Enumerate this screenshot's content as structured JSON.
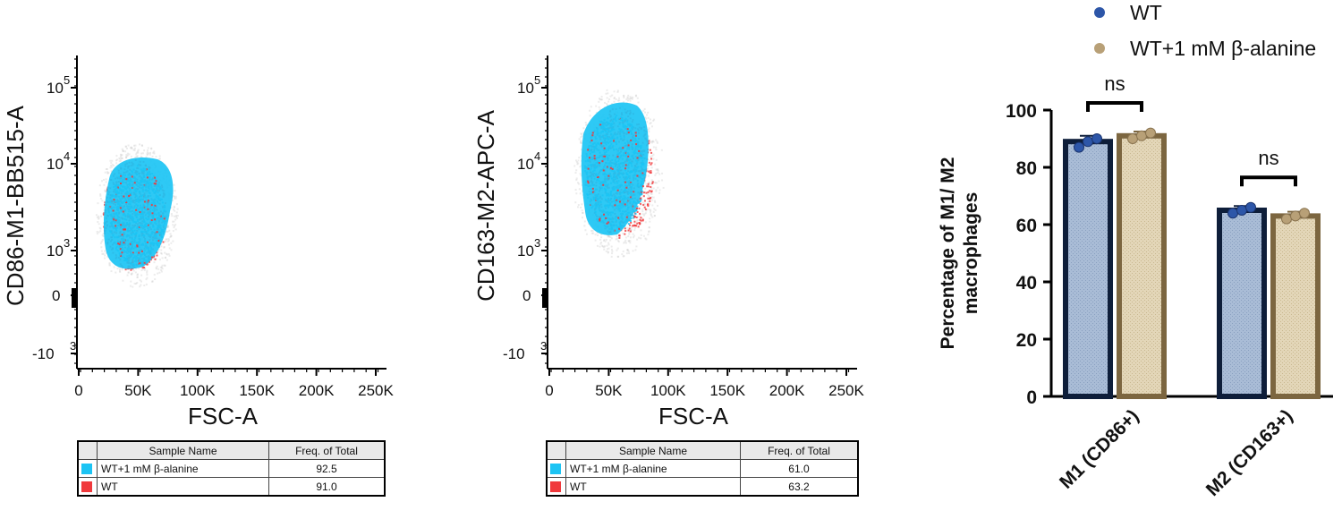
{
  "colors": {
    "cyan": "#1cc4f4",
    "red": "#f0393c",
    "navy": "#0e1e3a",
    "blue_fill": "#a9bcd6",
    "blue_dot": "#2d56a8",
    "tan_fill": "#e3d6b8",
    "tan_edge": "#7c6640",
    "tan_dot": "#b8a077"
  },
  "flow_plots": [
    {
      "ylabel": "CD86-M1-BB515-A",
      "xlabel": "FSC-A",
      "yticks": [
        "10",
        "10",
        "10",
        "0",
        "-10"
      ],
      "ytick_exps": [
        "5",
        "4",
        "3",
        "",
        "3"
      ],
      "xticks": [
        "0",
        "50K",
        "100K",
        "150K",
        "200K",
        "250K"
      ],
      "table": {
        "headers": [
          "Sample Name",
          "Freq. of Total"
        ],
        "rows": [
          {
            "name": "WT+1 mM β-alanine",
            "freq": "92.5",
            "color": "#1cc4f4"
          },
          {
            "name": "WT",
            "freq": "91.0",
            "color": "#f0393c"
          }
        ]
      }
    },
    {
      "ylabel": "CD163-M2-APC-A",
      "xlabel": "FSC-A",
      "yticks": [
        "10",
        "10",
        "10",
        "0",
        "-10"
      ],
      "ytick_exps": [
        "5",
        "4",
        "3",
        "",
        "3"
      ],
      "xticks": [
        "0",
        "50K",
        "100K",
        "150K",
        "200K",
        "250K"
      ],
      "table": {
        "headers": [
          "Sample Name",
          "Freq. of Total"
        ],
        "rows": [
          {
            "name": "WT+1 mM β-alanine",
            "freq": "61.0",
            "color": "#1cc4f4"
          },
          {
            "name": "WT",
            "freq": "63.2",
            "color": "#f0393c"
          }
        ]
      }
    }
  ],
  "chart_data": {
    "type": "bar",
    "ylabel": "Percentage of M1/ M2\nmacrophages",
    "ylim": [
      0,
      100
    ],
    "yticks": [
      0,
      20,
      40,
      60,
      80,
      100
    ],
    "categories": [
      "M1 (CD86+)",
      "M2 (CD163+)"
    ],
    "series": [
      {
        "name": "WT",
        "values": [
          89,
          65
        ],
        "errors": [
          2,
          1.5
        ],
        "points": [
          [
            87,
            89,
            90
          ],
          [
            64,
            65,
            66
          ]
        ]
      },
      {
        "name": "WT+1 mM β-alanine",
        "values": [
          91,
          63
        ],
        "errors": [
          1.5,
          1.5
        ],
        "points": [
          [
            90,
            91,
            92
          ],
          [
            62,
            63,
            64
          ]
        ]
      }
    ],
    "annotations": [
      "ns",
      "ns"
    ],
    "legend": "top-right"
  }
}
